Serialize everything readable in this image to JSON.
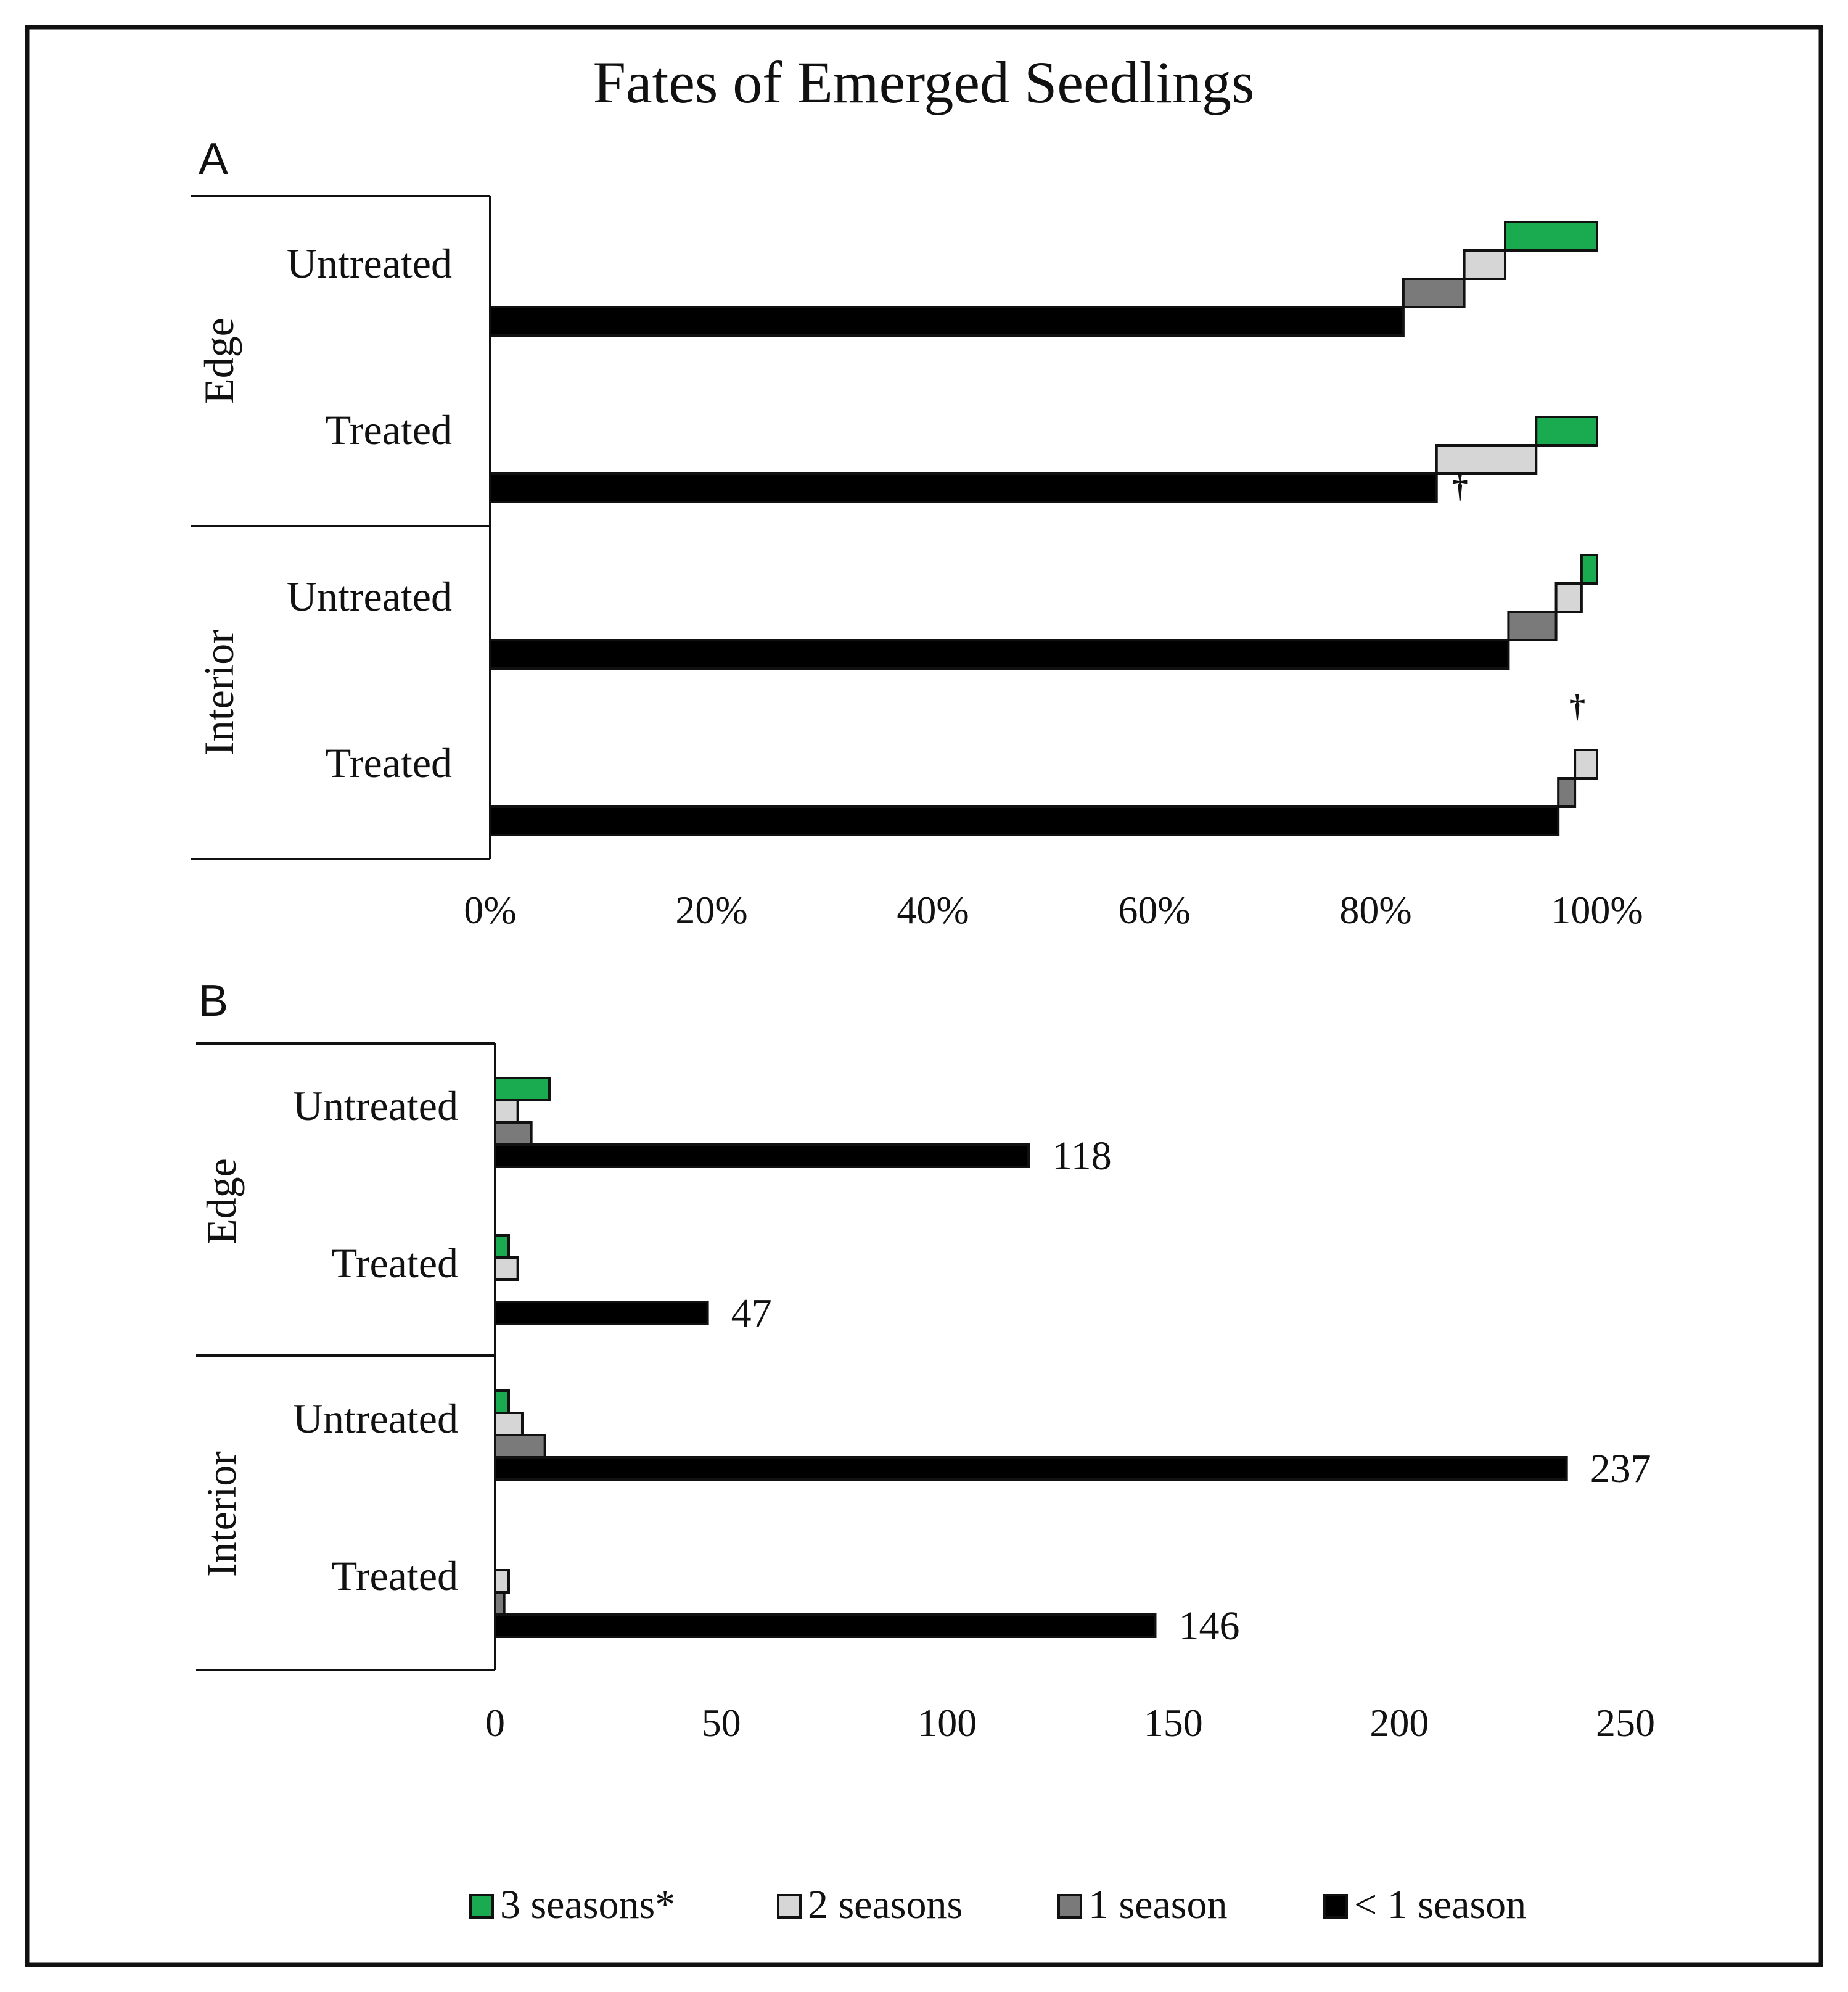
{
  "title": "Fates of Emerged Seedlings",
  "legend": [
    {
      "key": "three",
      "label": "3 seasons*",
      "color": "#1aaa50"
    },
    {
      "key": "two",
      "label": "2 seasons",
      "color": "#d6d6d6"
    },
    {
      "key": "one",
      "label": "1 season",
      "color": "#7a7a7a"
    },
    {
      "key": "less",
      "label": "< 1 season",
      "color": "#000000"
    }
  ],
  "chart_data": [
    {
      "panel": "A",
      "type": "bar",
      "orientation": "horizontal",
      "layout": "cumulative-step",
      "x_ticks": [
        "0%",
        "20%",
        "40%",
        "60%",
        "80%",
        "100%"
      ],
      "xlim": [
        0,
        100
      ],
      "groups": [
        {
          "label": "Edge",
          "categories": [
            {
              "label": "Untreated",
              "values": {
                "less": 82.5,
                "one": 5.5,
                "two": 3.7,
                "three": 8.3
              }
            },
            {
              "label": "Treated",
              "values": {
                "less": 85.5,
                "one": 0,
                "two": 9.0,
                "three": 5.5
              },
              "dagger": "†",
              "dagger_series": "one"
            }
          ]
        },
        {
          "label": "Interior",
          "categories": [
            {
              "label": "Untreated",
              "values": {
                "less": 92.0,
                "one": 4.3,
                "two": 2.3,
                "three": 1.4
              }
            },
            {
              "label": "Treated",
              "values": {
                "less": 96.5,
                "one": 1.5,
                "two": 2.0,
                "three": 0
              },
              "dagger": "†",
              "dagger_series": "three"
            }
          ]
        }
      ]
    },
    {
      "panel": "B",
      "type": "bar",
      "orientation": "horizontal",
      "layout": "grouped",
      "x_ticks": [
        "0",
        "50",
        "100",
        "150",
        "200",
        "250"
      ],
      "xlim": [
        0,
        250
      ],
      "groups": [
        {
          "label": "Edge",
          "categories": [
            {
              "label": "Untreated",
              "values": {
                "three": 12,
                "two": 5,
                "one": 8,
                "less": 118
              },
              "label_value": "118"
            },
            {
              "label": "Treated",
              "values": {
                "three": 3,
                "two": 5,
                "one": 0,
                "less": 47
              },
              "label_value": "47"
            }
          ]
        },
        {
          "label": "Interior",
          "categories": [
            {
              "label": "Untreated",
              "values": {
                "three": 3,
                "two": 6,
                "one": 11,
                "less": 237
              },
              "label_value": "237"
            },
            {
              "label": "Treated",
              "values": {
                "three": 0,
                "two": 3,
                "one": 2,
                "less": 146
              },
              "label_value": "146"
            }
          ]
        }
      ]
    }
  ]
}
